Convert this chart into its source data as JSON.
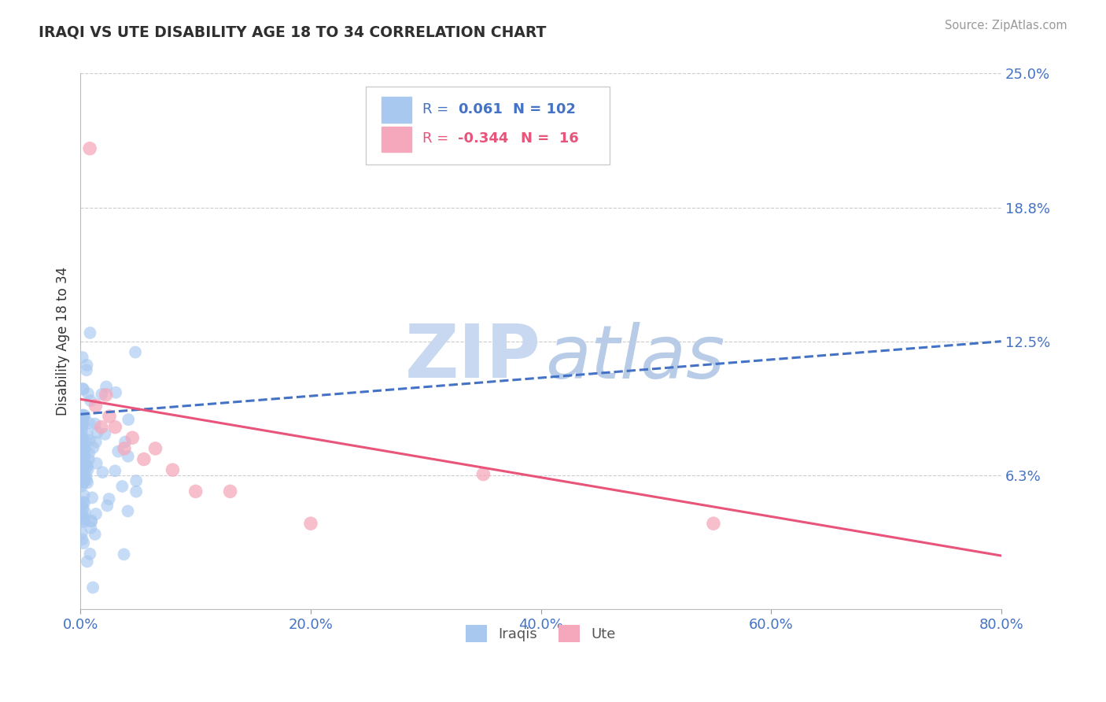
{
  "title": "IRAQI VS UTE DISABILITY AGE 18 TO 34 CORRELATION CHART",
  "source": "Source: ZipAtlas.com",
  "ylabel": "Disability Age 18 to 34",
  "xlim": [
    0.0,
    0.8
  ],
  "ylim": [
    0.0,
    0.25
  ],
  "yticks": [
    0.0,
    0.0625,
    0.125,
    0.1875,
    0.25
  ],
  "ytick_labels": [
    "",
    "6.3%",
    "12.5%",
    "18.8%",
    "25.0%"
  ],
  "xticks": [
    0.0,
    0.2,
    0.4,
    0.6,
    0.8
  ],
  "xtick_labels": [
    "0.0%",
    "20.0%",
    "40.0%",
    "60.0%",
    "80.0%"
  ],
  "iraqis_color": "#a8c8f0",
  "ute_color": "#f5a8bc",
  "trend_iraqis_color": "#4472c4",
  "trend_ute_color": "#e8547a",
  "R_iraqis": 0.061,
  "N_iraqis": 102,
  "R_ute": -0.344,
  "N_ute": 16,
  "background_color": "#ffffff",
  "grid_color": "#cccccc",
  "title_color": "#2f2f2f",
  "tick_color": "#4472c4",
  "watermark_zip_color": "#c8d8f0",
  "watermark_atlas_color": "#b8cce8",
  "legend_iraqis_color": "#4472c4",
  "legend_ute_color": "#e8547a",
  "iraqis_trend_start_y": 0.091,
  "iraqis_trend_end_y": 0.125,
  "ute_trend_start_y": 0.098,
  "ute_trend_end_y": 0.025
}
